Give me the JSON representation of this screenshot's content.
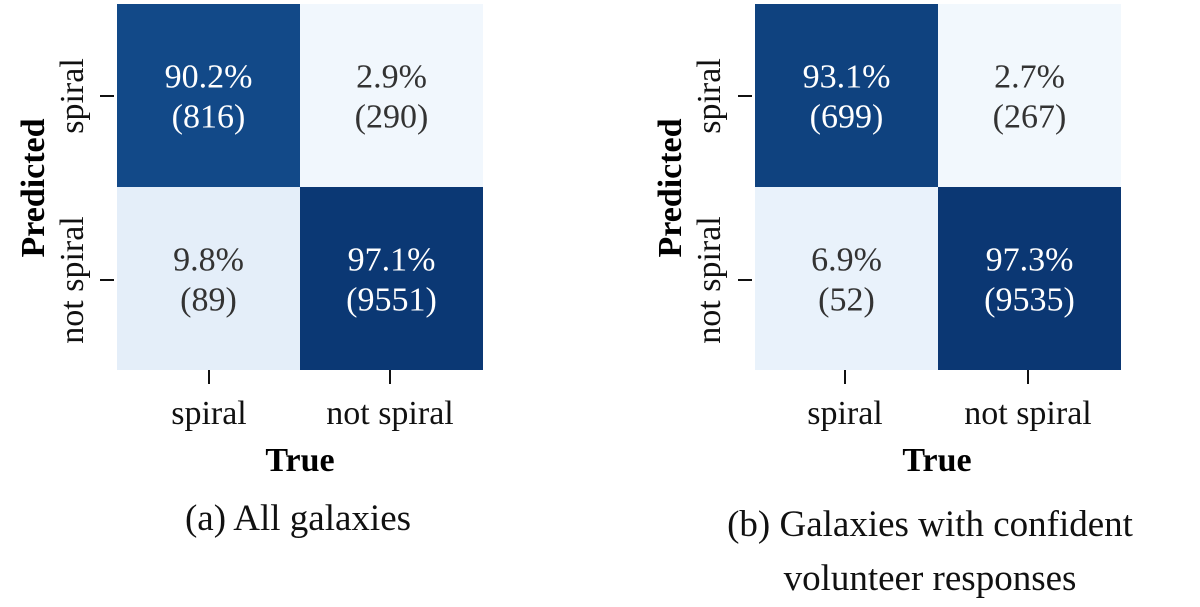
{
  "chart_data": [
    {
      "type": "heatmap",
      "caption": "(a) All galaxies",
      "xlabel": "True",
      "ylabel": "Predicted",
      "x_categories": [
        "spiral",
        "not spiral"
      ],
      "y_categories": [
        "spiral",
        "not spiral"
      ],
      "cells": [
        [
          {
            "percent": "90.2%",
            "count": "(816)",
            "value": 90.2
          },
          {
            "percent": "2.9%",
            "count": "(290)",
            "value": 2.9
          }
        ],
        [
          {
            "percent": "9.8%",
            "count": "(89)",
            "value": 9.8
          },
          {
            "percent": "97.1%",
            "count": "(9551)",
            "value": 97.1
          }
        ]
      ],
      "colormap": "Blues",
      "colorbar": false
    },
    {
      "type": "heatmap",
      "caption": "(b) Galaxies with confident volunteer responses",
      "caption_lines": [
        "(b) Galaxies with confident",
        "volunteer responses"
      ],
      "xlabel": "True",
      "ylabel": "Predicted",
      "x_categories": [
        "spiral",
        "not spiral"
      ],
      "y_categories": [
        "spiral",
        "not spiral"
      ],
      "cells": [
        [
          {
            "percent": "93.1%",
            "count": "(699)",
            "value": 93.1
          },
          {
            "percent": "2.7%",
            "count": "(267)",
            "value": 2.7
          }
        ],
        [
          {
            "percent": "6.9%",
            "count": "(52)",
            "value": 6.9
          },
          {
            "percent": "97.3%",
            "count": "(9535)",
            "value": 97.3
          }
        ]
      ],
      "colormap": "Blues",
      "colorbar": false
    }
  ]
}
